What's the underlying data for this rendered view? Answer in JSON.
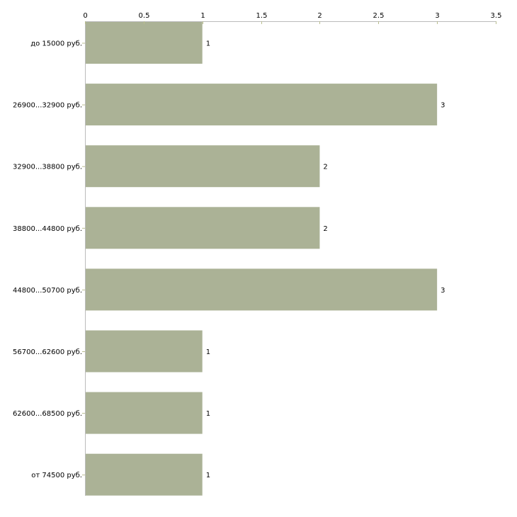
{
  "chart_data": {
    "type": "bar",
    "orientation": "horizontal",
    "title": "",
    "xlabel": "",
    "ylabel": "",
    "xlim": [
      0,
      3.5
    ],
    "x_ticks": [
      "0",
      "0.5",
      "1",
      "1.5",
      "2",
      "2.5",
      "3",
      "3.5"
    ],
    "x_tick_values": [
      0,
      0.5,
      1,
      1.5,
      2,
      2.5,
      3,
      3.5
    ],
    "categories": [
      "до 15000 руб.",
      "26900...32900 руб.",
      "32900...38800 руб.",
      "38800...44800 руб.",
      "44800...50700 руб.",
      "56700...62600 руб.",
      "62600...68500 руб.",
      "от 74500 руб."
    ],
    "values": [
      1,
      3,
      2,
      2,
      3,
      1,
      1,
      1
    ],
    "data_labels": [
      "1",
      "3",
      "2",
      "2",
      "3",
      "1",
      "1",
      "1"
    ],
    "grid": false,
    "colors": {
      "bar": "#abb296",
      "axis": "#bbbbbb",
      "tick": "#b9bd8f"
    }
  }
}
